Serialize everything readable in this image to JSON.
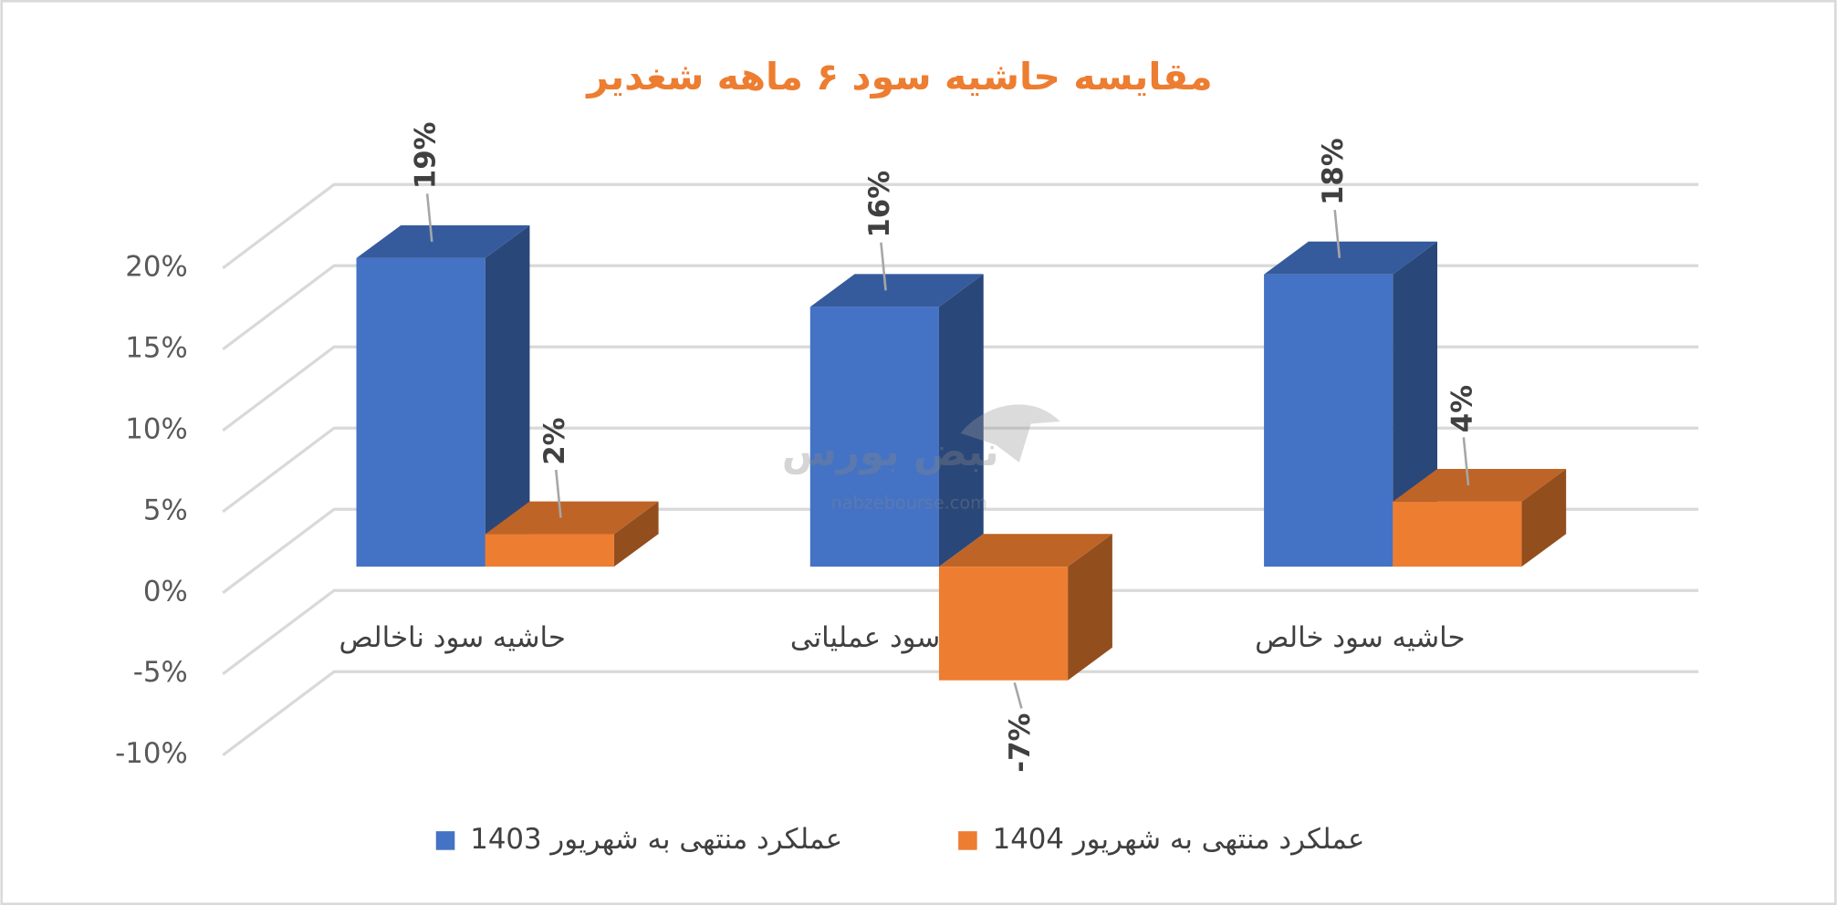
{
  "chart_data": {
    "type": "bar3d",
    "title": "مقایسه حاشیه سود ۶ ماهه شغدیر",
    "categories": [
      "حاشیه سود ناخالص",
      "حاشیه سود عملیاتی",
      "حاشیه سود خالص"
    ],
    "series": [
      {
        "name": "عملکرد منتهی به شهریور 1403",
        "color": "#4472c4",
        "values": [
          19,
          16,
          18
        ],
        "value_labels": [
          "19%",
          "16%",
          "18%"
        ]
      },
      {
        "name": "عملکرد منتهی به شهریور 1404",
        "color": "#ed7d31",
        "values": [
          2,
          -7,
          4
        ],
        "value_labels": [
          "2%",
          "-7%",
          "4%"
        ]
      }
    ],
    "ylim": [
      -10,
      20
    ],
    "yticks": [
      {
        "value": 20,
        "label": "20%"
      },
      {
        "value": 15,
        "label": "15%"
      },
      {
        "value": 10,
        "label": "10%"
      },
      {
        "value": 5,
        "label": "5%"
      },
      {
        "value": 0,
        "label": "0%"
      },
      {
        "value": -5,
        "label": "-5%"
      },
      {
        "value": -10,
        "label": "-10%"
      }
    ],
    "grid": true,
    "legend": "bottom",
    "watermark": {
      "name": "نبض بورس",
      "url": "nabzebourse.com"
    }
  }
}
